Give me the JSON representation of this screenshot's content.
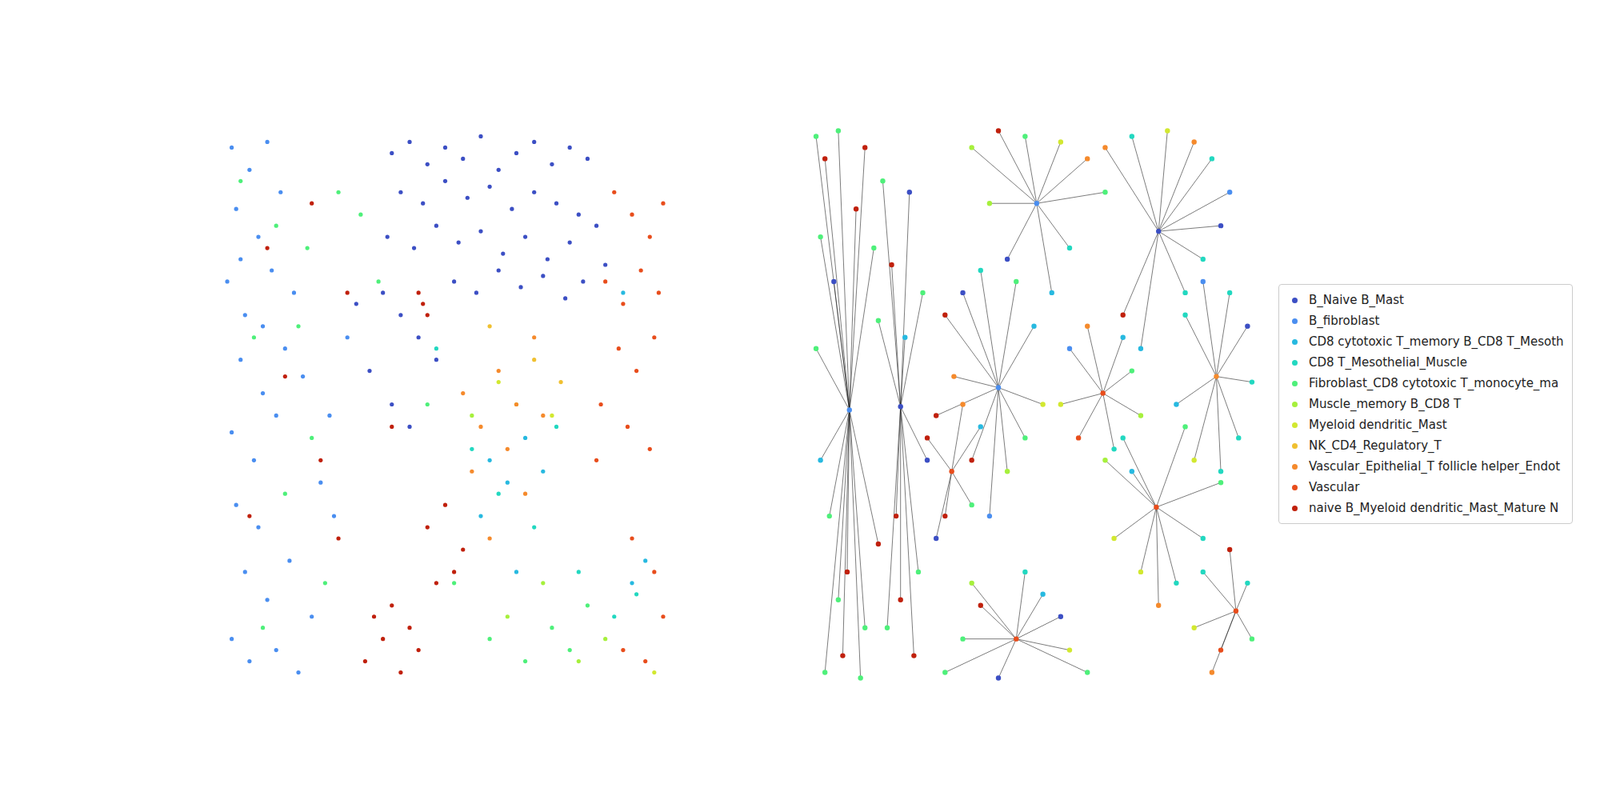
{
  "chart_data": [
    {
      "type": "scatter",
      "tick_labels": false,
      "legend": "right",
      "xlim": [
        0,
        100
      ],
      "ylim": [
        0,
        100
      ],
      "series": [
        {
          "name": "B_Naive B_Mast",
          "color": "#3c4fc4",
          "x": [
            38,
            42,
            46,
            50,
            54,
            58,
            62,
            66,
            70,
            74,
            78,
            82,
            40,
            45,
            50,
            55,
            60,
            65,
            70,
            75,
            80,
            37,
            43,
            48,
            53,
            58,
            63,
            68,
            73,
            78,
            84,
            36,
            40,
            44,
            48,
            30,
            33,
            38,
            42,
            52,
            57,
            62,
            67,
            72,
            77,
            81,
            86
          ],
          "y": [
            95,
            97,
            93,
            96,
            94,
            98,
            92,
            95,
            97,
            93,
            96,
            94,
            88,
            86,
            90,
            87,
            89,
            85,
            88,
            86,
            84,
            80,
            78,
            82,
            79,
            81,
            77,
            80,
            76,
            79,
            82,
            70,
            66,
            62,
            58,
            68,
            56,
            50,
            46,
            72,
            70,
            74,
            71,
            73,
            69,
            72,
            75
          ]
        },
        {
          "name": "B_fibroblast",
          "color": "#4a8ef0",
          "x": [
            2,
            6,
            10,
            3,
            8,
            13,
            1,
            5,
            11,
            16,
            4,
            9,
            14,
            2,
            7,
            12,
            18,
            3,
            8,
            22,
            5,
            10,
            15,
            20,
            25,
            2,
            6,
            12,
            17,
            24,
            28,
            4,
            9
          ],
          "y": [
            96,
            92,
            97,
            85,
            80,
            88,
            72,
            66,
            74,
            70,
            58,
            52,
            60,
            45,
            40,
            48,
            55,
            32,
            28,
            36,
            20,
            15,
            22,
            12,
            30,
            8,
            4,
            6,
            2,
            48,
            62,
            76,
            64
          ]
        },
        {
          "name": "CD8 cytotoxic T_memory B_CD8 T_Mesoth",
          "color": "#27b9e0",
          "x": [
            60,
            64,
            68,
            58,
            72,
            66,
            92,
            95,
            90
          ],
          "y": [
            40,
            36,
            44,
            30,
            38,
            20,
            18,
            22,
            70
          ]
        },
        {
          "name": "CD8 T_Mesothelial_Muscle",
          "color": "#22d8c0",
          "x": [
            56,
            62,
            70,
            75,
            80,
            88,
            93,
            48
          ],
          "y": [
            42,
            34,
            28,
            46,
            20,
            12,
            16,
            60
          ]
        },
        {
          "name": "Fibroblast_CD8 cytotoxic T_monocyte_ma",
          "color": "#4ef07a",
          "x": [
            4,
            12,
            7,
            17,
            20,
            14,
            9,
            23,
            19,
            26,
            31,
            35,
            60,
            68,
            74,
            78,
            82,
            52,
            46
          ],
          "y": [
            90,
            82,
            62,
            64,
            44,
            34,
            10,
            18,
            78,
            88,
            84,
            72,
            8,
            4,
            10,
            6,
            14,
            18,
            50
          ]
        },
        {
          "name": "Muscle_memory B_CD8 T",
          "color": "#a6f03c",
          "x": [
            64,
            72,
            80,
            86,
            56
          ],
          "y": [
            12,
            18,
            4,
            8,
            48
          ]
        },
        {
          "name": "Myeloid dendritic_Mast",
          "color": "#d2e830",
          "x": [
            66,
            74,
            97,
            62
          ],
          "y": [
            50,
            48,
            2,
            54
          ]
        },
        {
          "name": "NK_CD4_Regulatory_T",
          "color": "#f0c030",
          "x": [
            70,
            76,
            60
          ],
          "y": [
            58,
            54,
            64
          ]
        },
        {
          "name": "Vascular_Epithelial_T follicle helper_Endot",
          "color": "#f58a2c",
          "x": [
            54,
            58,
            62,
            66,
            70,
            56,
            64,
            68,
            72,
            60
          ],
          "y": [
            52,
            46,
            56,
            50,
            62,
            38,
            42,
            34,
            48,
            26
          ]
        },
        {
          "name": "Vascular",
          "color": "#e84d1c",
          "x": [
            88,
            92,
            96,
            99,
            86,
            90,
            94,
            98,
            89,
            93,
            97,
            85,
            91,
            96,
            92,
            97,
            99,
            90,
            95,
            84
          ],
          "y": [
            88,
            84,
            80,
            86,
            72,
            68,
            74,
            70,
            60,
            56,
            62,
            50,
            46,
            42,
            26,
            20,
            12,
            6,
            4,
            40
          ]
        },
        {
          "name": "naive B_Myeloid dendritic_Mast_Mature N",
          "color": "#c0200c",
          "x": [
            32,
            36,
            40,
            44,
            34,
            38,
            42,
            46,
            50,
            54,
            45,
            44,
            46,
            22,
            26,
            14,
            6,
            48,
            52,
            20,
            10,
            28,
            38
          ],
          "y": [
            4,
            8,
            2,
            6,
            12,
            14,
            10,
            28,
            32,
            24,
            68,
            70,
            66,
            40,
            26,
            55,
            30,
            18,
            20,
            86,
            78,
            70,
            46
          ]
        }
      ]
    },
    {
      "type": "network",
      "tick_labels": false,
      "xlim": [
        0,
        100
      ],
      "ylim": [
        0,
        100
      ],
      "hubs": [
        {
          "x": 8.5,
          "y": 49,
          "group": 1,
          "leaves": {
            "x": [
              1,
              3,
              6,
              12,
              2,
              5,
              10,
              14,
              1,
              4,
              8,
              12,
              3,
              7,
              11,
              2,
              6,
              15
            ],
            "y": [
              98,
              94,
              99,
              96,
              80,
              72,
              85,
              78,
              60,
              30,
              20,
              10,
              2,
              5,
              1,
              40,
              15,
              25
            ],
            "group": [
              4,
              10,
              4,
              10,
              4,
              0,
              10,
              4,
              4,
              4,
              10,
              4,
              4,
              10,
              4,
              2,
              4,
              10
            ]
          }
        },
        {
          "x": 20,
          "y": 49.6,
          "group": 0,
          "leaves": {
            "x": [
              16,
              18,
              22,
              25,
              19,
              24,
              17,
              23,
              21,
              26,
              15,
              20
            ],
            "y": [
              90,
              75,
              88,
              70,
              30,
              20,
              10,
              5,
              62,
              40,
              65,
              15
            ],
            "group": [
              4,
              10,
              0,
              4,
              10,
              4,
              4,
              10,
              2,
              0,
              4,
              10
            ]
          }
        },
        {
          "x": 42,
          "y": 53,
          "group": 1,
          "leaves": {
            "x": [
              30,
              34,
              38,
              46,
              50,
              36,
              44,
              48,
              32,
              40,
              28,
              52
            ],
            "y": [
              66,
              70,
              74,
              72,
              64,
              40,
              38,
              44,
              55,
              30,
              48,
              50
            ],
            "group": [
              10,
              0,
              3,
              4,
              2,
              10,
              5,
              4,
              8,
              1,
              10,
              6
            ]
          }
        },
        {
          "x": 50.6,
          "y": 86,
          "group": 1,
          "leaves": {
            "x": [
              36,
              42,
              48,
              56,
              62,
              66,
              58,
              44,
              40,
              54
            ],
            "y": [
              96,
              99,
              98,
              97,
              94,
              88,
              78,
              76,
              86,
              70
            ],
            "group": [
              5,
              10,
              4,
              6,
              8,
              4,
              3,
              0,
              5,
              2
            ]
          }
        },
        {
          "x": 78,
          "y": 81,
          "group": 0,
          "leaves": {
            "x": [
              66,
              72,
              80,
              86,
              90,
              94,
              84,
              70,
              74,
              88,
              92
            ],
            "y": [
              96,
              98,
              99,
              97,
              94,
              88,
              70,
              66,
              60,
              76,
              82
            ],
            "group": [
              8,
              3,
              6,
              8,
              3,
              1,
              3,
              10,
              2,
              3,
              0
            ]
          }
        },
        {
          "x": 91,
          "y": 55,
          "group": 8,
          "leaves": {
            "x": [
              84,
              88,
              94,
              98,
              99,
              96,
              86,
              92,
              82
            ],
            "y": [
              66,
              72,
              70,
              64,
              54,
              44,
              40,
              38,
              50
            ],
            "group": [
              3,
              1,
              3,
              0,
              3,
              3,
              6,
              3,
              2
            ]
          }
        },
        {
          "x": 77.5,
          "y": 31.6,
          "group": 9,
          "leaves": {
            "x": [
              66,
              70,
              74,
              82,
              88,
              92,
              84,
              78,
              72,
              68
            ],
            "y": [
              40,
              44,
              20,
              18,
              26,
              36,
              46,
              14,
              38,
              26
            ],
            "group": [
              5,
              3,
              6,
              3,
              3,
              4,
              4,
              8,
              2,
              6
            ]
          }
        },
        {
          "x": 46,
          "y": 8,
          "group": 9,
          "leaves": {
            "x": [
              30,
              34,
              38,
              52,
              58,
              62,
              56,
              42,
              36,
              48
            ],
            "y": [
              2,
              8,
              14,
              16,
              6,
              2,
              12,
              1,
              18,
              20
            ],
            "group": [
              4,
              4,
              10,
              2,
              6,
              4,
              0,
              0,
              5,
              3
            ]
          }
        },
        {
          "x": 95.4,
          "y": 13,
          "group": 9,
          "leaves": {
            "x": [
              88,
              92,
              98,
              99,
              90,
              86,
              94
            ],
            "y": [
              20,
              6,
              18,
              8,
              2,
              10,
              24
            ],
            "group": [
              3,
              9,
              3,
              4,
              8,
              6,
              10
            ]
          }
        },
        {
          "x": 65.5,
          "y": 52,
          "group": 9,
          "leaves": {
            "x": [
              58,
              62,
              70,
              72,
              60,
              68,
              56,
              74
            ],
            "y": [
              60,
              64,
              62,
              56,
              44,
              42,
              50,
              48
            ],
            "group": [
              1,
              8,
              2,
              4,
              9,
              3,
              6,
              5
            ]
          }
        },
        {
          "x": 31.5,
          "y": 38,
          "group": 9,
          "leaves": {
            "x": [
              26,
              30,
              36,
              38,
              28,
              34
            ],
            "y": [
              44,
              30,
              32,
              46,
              26,
              50
            ],
            "group": [
              10,
              10,
              4,
              2,
              0,
              8
            ]
          }
        }
      ]
    }
  ]
}
